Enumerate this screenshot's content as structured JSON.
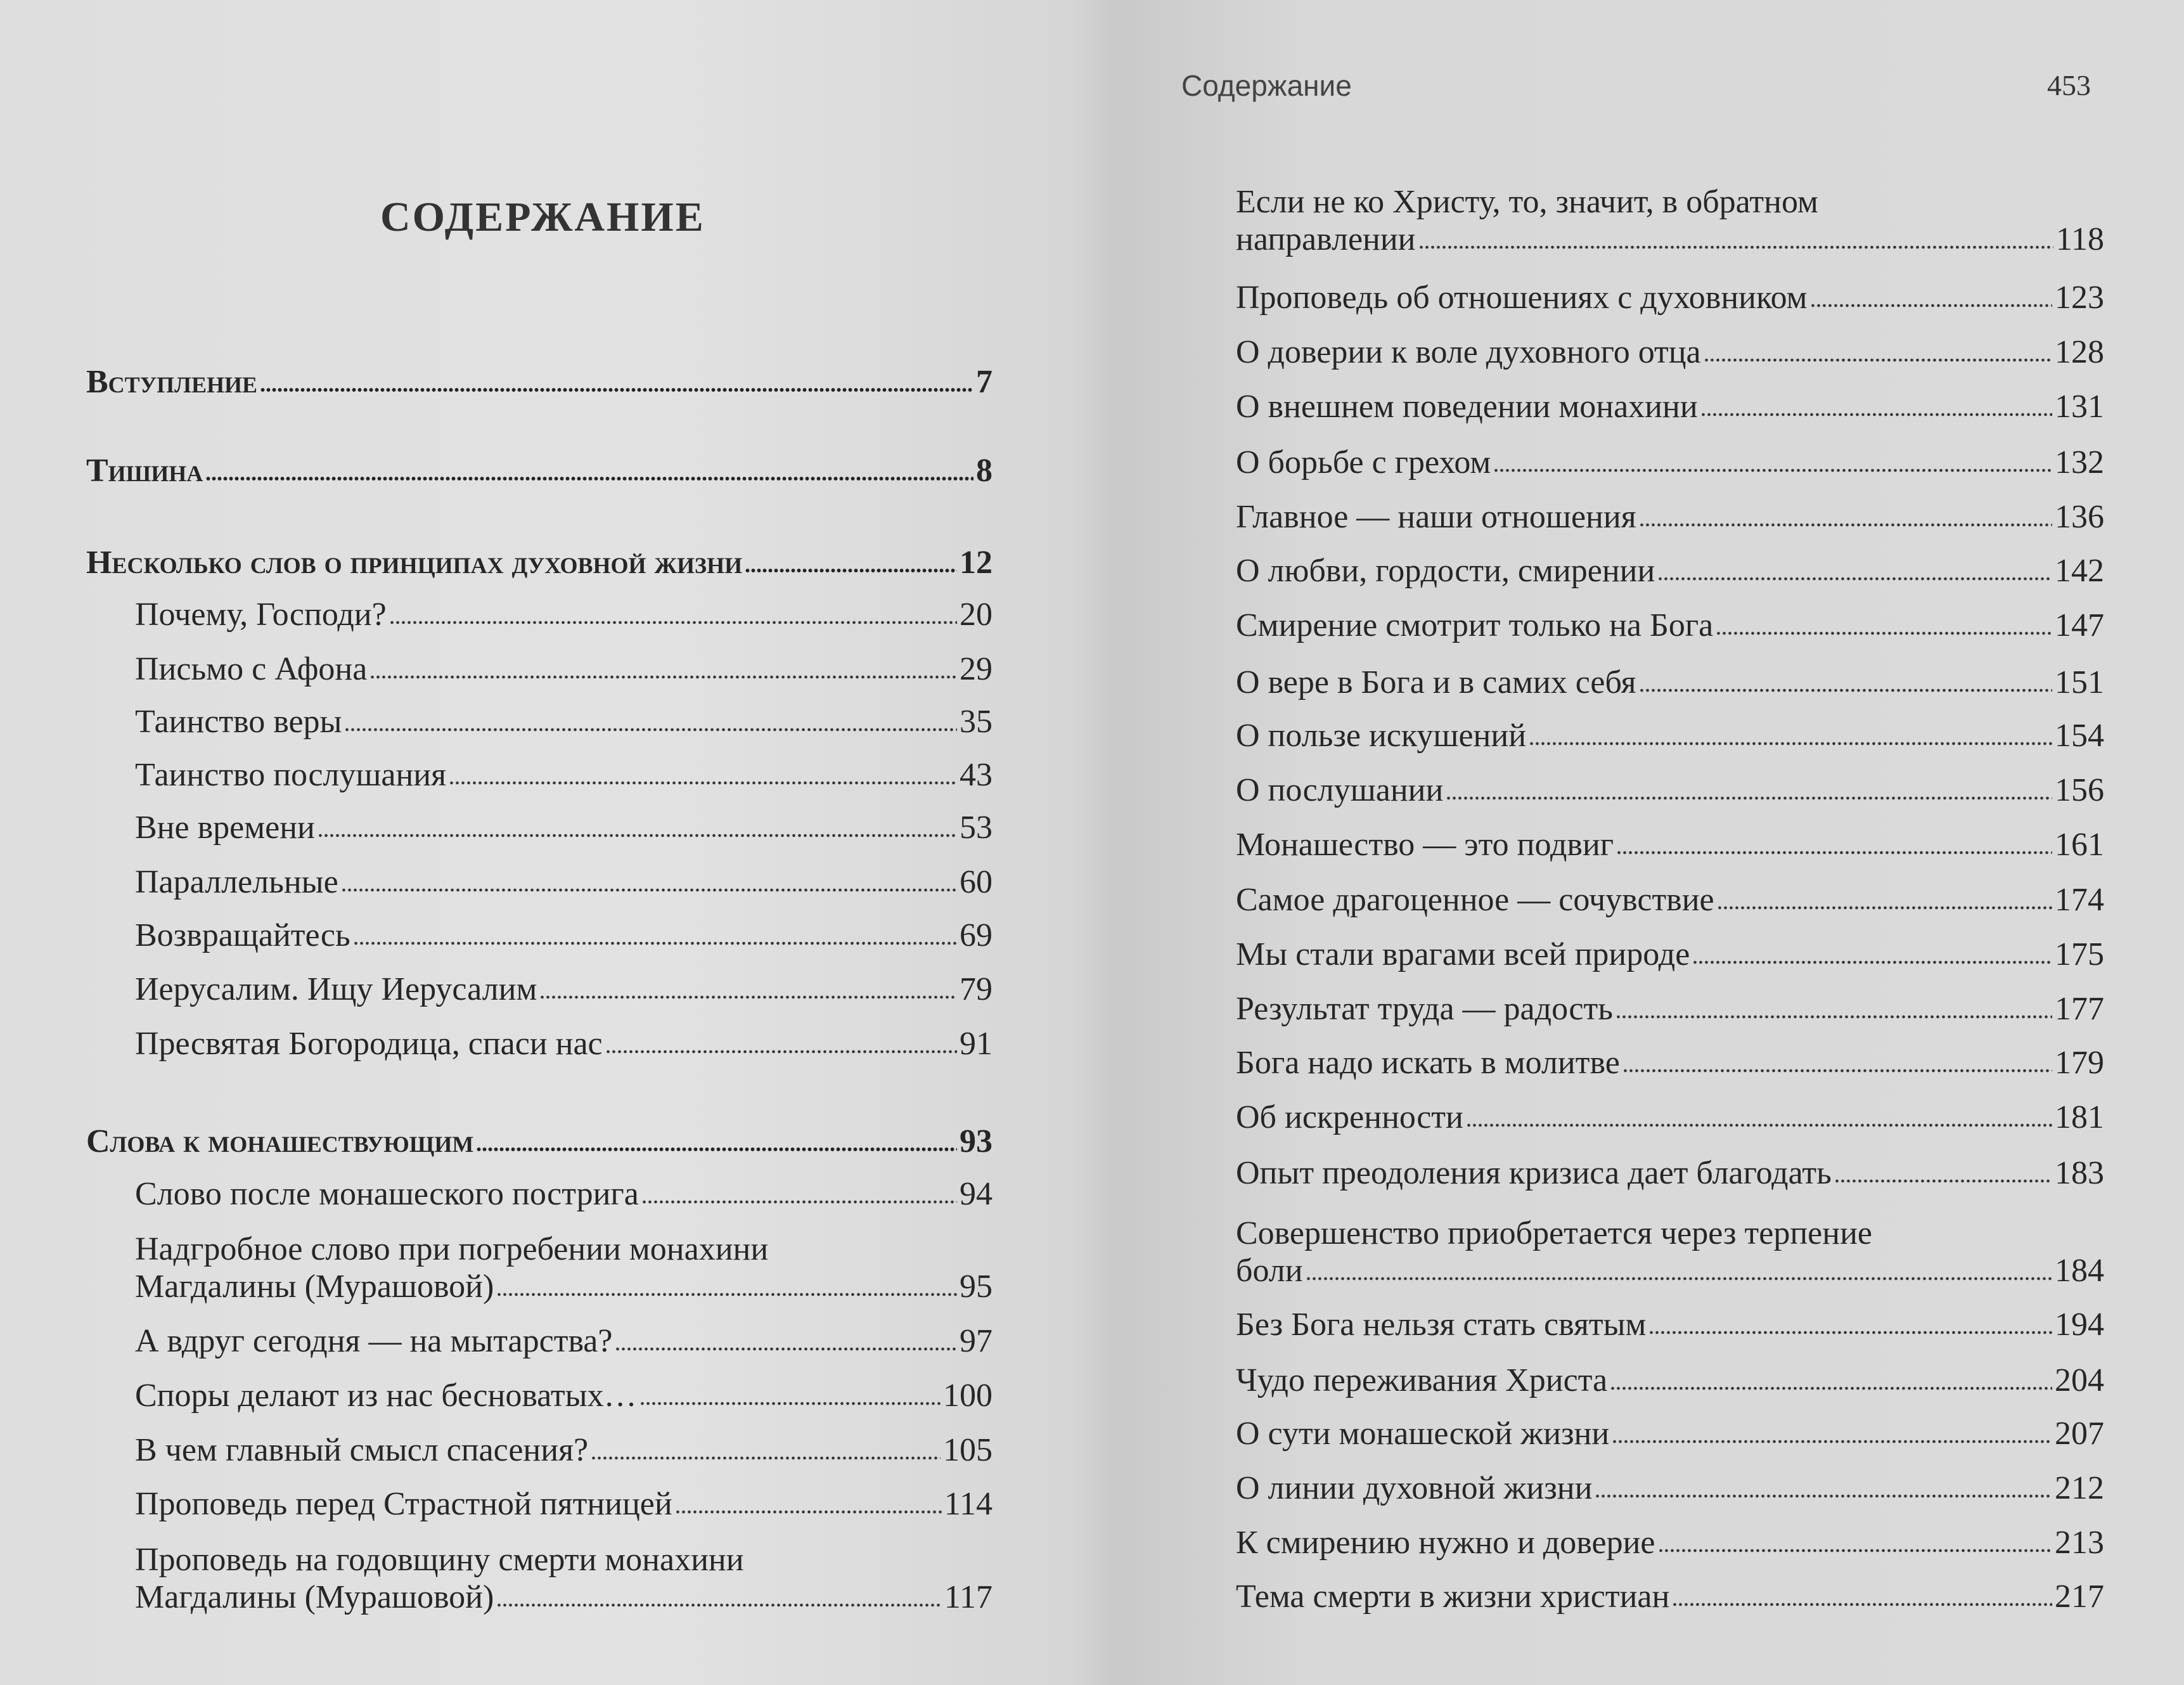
{
  "left_page": {
    "title": "СОДЕРЖАНИЕ",
    "entries": [
      {
        "type": "section",
        "lines": [
          "Вступление"
        ],
        "page": "7"
      },
      {
        "type": "section",
        "lines": [
          "Тишина"
        ],
        "page": "8"
      },
      {
        "type": "section",
        "lines": [
          "Несколько слов о принципах духовной жизни"
        ],
        "page": "12"
      },
      {
        "type": "item",
        "lines": [
          "Почему, Господи?"
        ],
        "page": "20"
      },
      {
        "type": "item",
        "lines": [
          "Письмо с Афона"
        ],
        "page": "29"
      },
      {
        "type": "item",
        "lines": [
          "Таинство веры"
        ],
        "page": "35"
      },
      {
        "type": "item",
        "lines": [
          "Таинство послушания"
        ],
        "page": "43"
      },
      {
        "type": "item",
        "lines": [
          "Вне времени"
        ],
        "page": "53"
      },
      {
        "type": "item",
        "lines": [
          "Параллельные"
        ],
        "page": "60"
      },
      {
        "type": "item",
        "lines": [
          "Возвращайтесь"
        ],
        "page": "69"
      },
      {
        "type": "item",
        "lines": [
          "Иерусалим. Ищу Иерусалим"
        ],
        "page": "79"
      },
      {
        "type": "item",
        "lines": [
          "Пресвятая Богородица, спаси нас"
        ],
        "page": "91"
      },
      {
        "type": "section",
        "lines": [
          "Слова к монашествующим"
        ],
        "page": "93"
      },
      {
        "type": "item",
        "lines": [
          "Слово после монашеского пострига"
        ],
        "page": "94"
      },
      {
        "type": "item",
        "lines": [
          "Надгробное слово при погребении монахини",
          "Магдалины (Мурашовой)"
        ],
        "page": "95"
      },
      {
        "type": "item",
        "lines": [
          "А вдруг сегодня — на мытарства?"
        ],
        "page": "97"
      },
      {
        "type": "item",
        "lines": [
          "Споры делают из нас бесноватых…"
        ],
        "page": "100"
      },
      {
        "type": "item",
        "lines": [
          "В чем главный смысл спасения?"
        ],
        "page": "105"
      },
      {
        "type": "item",
        "lines": [
          "Проповедь перед Страстной пятницей"
        ],
        "page": "114"
      },
      {
        "type": "item",
        "lines": [
          "Проповедь на годовщину смерти монахини",
          "Магдалины (Мурашовой)"
        ],
        "page": "117"
      }
    ]
  },
  "right_page": {
    "running_head": "Содержание",
    "page_number": "453",
    "entries": [
      {
        "type": "item",
        "lines": [
          "Если не ко Христу, то, значит, в обратном",
          "направлении"
        ],
        "page": "118"
      },
      {
        "type": "item",
        "lines": [
          "Проповедь об отношениях с духовником"
        ],
        "page": "123"
      },
      {
        "type": "item",
        "lines": [
          "О доверии к воле духовного отца"
        ],
        "page": "128"
      },
      {
        "type": "item",
        "lines": [
          "О внешнем поведении монахини"
        ],
        "page": "131"
      },
      {
        "type": "item",
        "lines": [
          "О борьбе с грехом"
        ],
        "page": "132"
      },
      {
        "type": "item",
        "lines": [
          "Главное — наши отношения"
        ],
        "page": "136"
      },
      {
        "type": "item",
        "lines": [
          "О любви, гордости, смирении"
        ],
        "page": "142"
      },
      {
        "type": "item",
        "lines": [
          "Смирение смотрит только на Бога"
        ],
        "page": "147"
      },
      {
        "type": "item",
        "lines": [
          "О вере в Бога и в самих себя"
        ],
        "page": "151"
      },
      {
        "type": "item",
        "lines": [
          "О пользе искушений"
        ],
        "page": "154"
      },
      {
        "type": "item",
        "lines": [
          "О послушании"
        ],
        "page": "156"
      },
      {
        "type": "item",
        "lines": [
          "Монашество — это подвиг"
        ],
        "page": "161"
      },
      {
        "type": "item",
        "lines": [
          "Самое драгоценное — сочувствие"
        ],
        "page": "174"
      },
      {
        "type": "item",
        "lines": [
          "Мы стали врагами всей природе"
        ],
        "page": "175"
      },
      {
        "type": "item",
        "lines": [
          "Результат труда — радость"
        ],
        "page": "177"
      },
      {
        "type": "item",
        "lines": [
          "Бога надо искать в молитве"
        ],
        "page": "179"
      },
      {
        "type": "item",
        "lines": [
          "Об искренности"
        ],
        "page": "181"
      },
      {
        "type": "item",
        "lines": [
          "Опыт преодоления кризиса дает благодать"
        ],
        "page": "183"
      },
      {
        "type": "item",
        "lines": [
          "Совершенство приобретается через терпение",
          "боли"
        ],
        "page": "184"
      },
      {
        "type": "item",
        "lines": [
          "Без Бога нельзя стать святым"
        ],
        "page": "194"
      },
      {
        "type": "item",
        "lines": [
          "Чудо переживания Христа"
        ],
        "page": "204"
      },
      {
        "type": "item",
        "lines": [
          "О сути монашеской жизни"
        ],
        "page": "207"
      },
      {
        "type": "item",
        "lines": [
          "О линии духовной жизни"
        ],
        "page": "212"
      },
      {
        "type": "item",
        "lines": [
          "К смирению нужно и доверие"
        ],
        "page": "213"
      },
      {
        "type": "item",
        "lines": [
          "Тема смерти в жизни христиан"
        ],
        "page": "217"
      }
    ]
  }
}
